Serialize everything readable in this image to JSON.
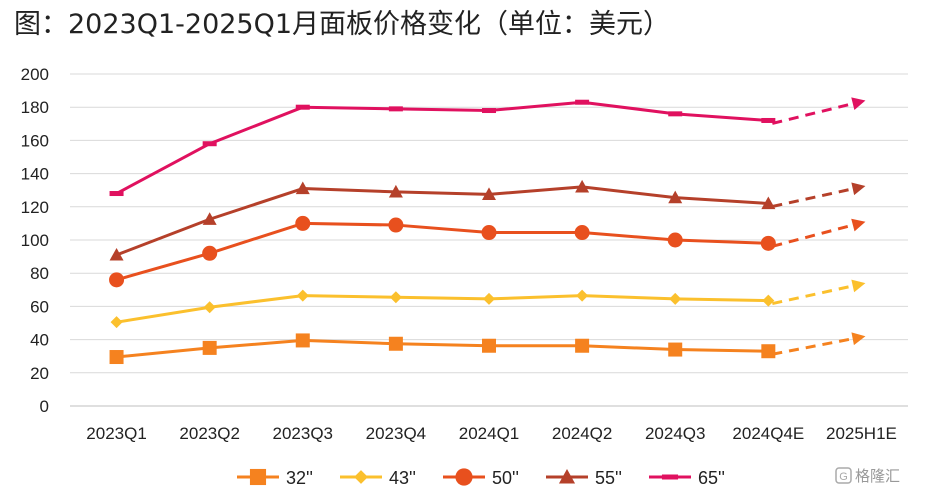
{
  "chart_data": {
    "type": "line",
    "title": "图：2023Q1-2025Q1月面板价格变化（单位：美元）",
    "categories": [
      "2023Q1",
      "2023Q2",
      "2023Q3",
      "2023Q4",
      "2024Q1",
      "2024Q2",
      "2024Q3",
      "2024Q4E",
      "2025H1E"
    ],
    "ylim": [
      0,
      200
    ],
    "yticks": [
      0,
      20,
      40,
      60,
      80,
      100,
      120,
      140,
      160,
      180,
      200
    ],
    "grid": true,
    "legend_position": "bottom",
    "projection": "dashed arrow from 2024Q4E to 2025H1E",
    "series": [
      {
        "name": "32''",
        "color": "#F5821F",
        "marker": "square",
        "values": [
          29.5,
          35,
          39.5,
          37.5,
          36.3,
          36.3,
          34,
          33,
          42
        ]
      },
      {
        "name": "43''",
        "color": "#FBC02D",
        "marker": "diamond",
        "values": [
          50.5,
          59.5,
          66.5,
          65.5,
          64.5,
          66.5,
          64.5,
          63.5,
          74
        ]
      },
      {
        "name": "50''",
        "color": "#E8501E",
        "marker": "circle",
        "values": [
          76,
          92,
          110,
          109,
          104.5,
          104.5,
          100,
          98,
          111
        ]
      },
      {
        "name": "55''",
        "color": "#B5402A",
        "marker": "triangle",
        "values": [
          91,
          112.5,
          131,
          129,
          127.5,
          132,
          125.5,
          122,
          132.5
        ]
      },
      {
        "name": "65''",
        "color": "#E0115F",
        "marker": "dash",
        "values": [
          128,
          158,
          180,
          179,
          178,
          183,
          176,
          172,
          184
        ]
      }
    ]
  },
  "watermark": {
    "text": "格隆汇",
    "icon": "gelonghui-logo-icon"
  }
}
